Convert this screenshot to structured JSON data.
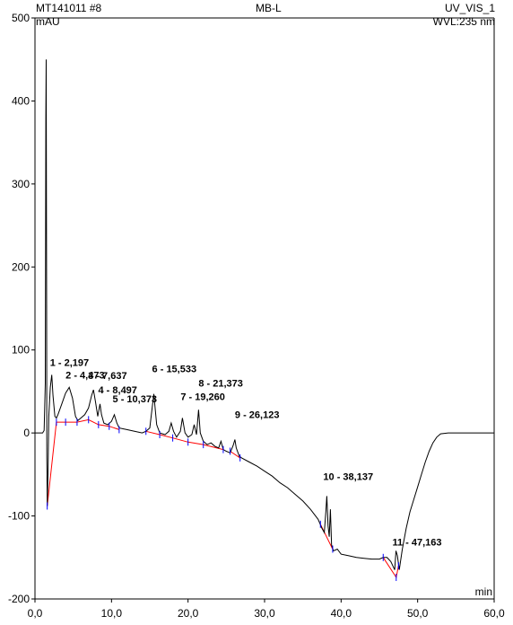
{
  "header": {
    "sample": "MT141011 #8",
    "method": "MB-L",
    "channel": "UV_VIS_1",
    "y_unit": "mAU",
    "wavelength": "WVL:235 nm"
  },
  "colors": {
    "trace": "#000000",
    "baseline": "#ff0000",
    "marker": "#0000ff"
  },
  "chart_data": {
    "type": "line",
    "xlabel": "min",
    "ylabel": "mAU",
    "xlim": [
      0,
      60
    ],
    "ylim": [
      -200,
      500
    ],
    "x_ticks": [
      0,
      10,
      20,
      30,
      40,
      50,
      60
    ],
    "x_tick_labels": [
      "0,0",
      "10,0",
      "20,0",
      "30,0",
      "40,0",
      "50,0",
      "60,0"
    ],
    "y_ticks": [
      -200,
      -100,
      0,
      100,
      200,
      300,
      400,
      500
    ],
    "y_tick_labels": [
      "-200",
      "-100",
      "0",
      "100",
      "200",
      "300",
      "400",
      "500"
    ],
    "grid": false,
    "series": [
      {
        "points": [
          [
            0.0,
            0
          ],
          [
            1.0,
            0
          ],
          [
            1.2,
            3
          ],
          [
            1.35,
            60
          ],
          [
            1.42,
            380
          ],
          [
            1.47,
            450
          ],
          [
            1.52,
            150
          ],
          [
            1.55,
            -30
          ],
          [
            1.6,
            -88
          ],
          [
            1.7,
            -50
          ],
          [
            1.8,
            20
          ],
          [
            2.0,
            55
          ],
          [
            2.197,
            70
          ],
          [
            2.35,
            45
          ],
          [
            2.6,
            20
          ],
          [
            2.8,
            18
          ],
          [
            3.0,
            22
          ],
          [
            3.5,
            35
          ],
          [
            4.0,
            48
          ],
          [
            4.473,
            55
          ],
          [
            4.9,
            42
          ],
          [
            5.3,
            20
          ],
          [
            5.6,
            15
          ],
          [
            6.0,
            18
          ],
          [
            6.5,
            22
          ],
          [
            7.0,
            30
          ],
          [
            7.4,
            45
          ],
          [
            7.637,
            52
          ],
          [
            7.9,
            38
          ],
          [
            8.2,
            20
          ],
          [
            8.497,
            35
          ],
          [
            8.7,
            22
          ],
          [
            9.0,
            12
          ],
          [
            9.5,
            10
          ],
          [
            10.0,
            14
          ],
          [
            10.373,
            22
          ],
          [
            10.7,
            12
          ],
          [
            11.0,
            6
          ],
          [
            11.5,
            5
          ],
          [
            12.0,
            4
          ],
          [
            13.0,
            2
          ],
          [
            14.0,
            0
          ],
          [
            14.5,
            2
          ],
          [
            15.0,
            6
          ],
          [
            15.533,
            47
          ],
          [
            15.9,
            10
          ],
          [
            16.3,
            0
          ],
          [
            17.0,
            -2
          ],
          [
            17.5,
            2
          ],
          [
            17.8,
            12
          ],
          [
            18.1,
            2
          ],
          [
            18.5,
            -5
          ],
          [
            19.0,
            2
          ],
          [
            19.26,
            18
          ],
          [
            19.6,
            0
          ],
          [
            20.0,
            -5
          ],
          [
            20.5,
            -2
          ],
          [
            20.8,
            10
          ],
          [
            21.1,
            -2
          ],
          [
            21.373,
            28
          ],
          [
            21.6,
            0
          ],
          [
            22.0,
            -10
          ],
          [
            22.5,
            -14
          ],
          [
            23.0,
            -12
          ],
          [
            23.5,
            -16
          ],
          [
            24.0,
            -18
          ],
          [
            24.3,
            -10
          ],
          [
            24.6,
            -20
          ],
          [
            25.0,
            -22
          ],
          [
            25.5,
            -24
          ],
          [
            25.9,
            -15
          ],
          [
            26.123,
            -8
          ],
          [
            26.3,
            -18
          ],
          [
            26.7,
            -28
          ],
          [
            27.0,
            -30
          ],
          [
            28.0,
            -35
          ],
          [
            29.0,
            -40
          ],
          [
            30.0,
            -46
          ],
          [
            31.0,
            -52
          ],
          [
            32.0,
            -60
          ],
          [
            33.0,
            -66
          ],
          [
            34.0,
            -74
          ],
          [
            35.0,
            -82
          ],
          [
            36.0,
            -92
          ],
          [
            37.0,
            -104
          ],
          [
            37.5,
            -115
          ],
          [
            37.8,
            -120
          ],
          [
            38.0,
            -95
          ],
          [
            38.137,
            -76
          ],
          [
            38.3,
            -112
          ],
          [
            38.45,
            -125
          ],
          [
            38.6,
            -92
          ],
          [
            38.75,
            -135
          ],
          [
            39.0,
            -142
          ],
          [
            39.5,
            -140
          ],
          [
            40.0,
            -146
          ],
          [
            41.0,
            -148
          ],
          [
            42.0,
            -150
          ],
          [
            43.0,
            -151
          ],
          [
            44.0,
            -152
          ],
          [
            45.0,
            -152
          ],
          [
            45.5,
            -150
          ],
          [
            46.0,
            -150
          ],
          [
            46.5,
            -155
          ],
          [
            47.0,
            -165
          ],
          [
            47.163,
            -142
          ],
          [
            47.35,
            -148
          ],
          [
            47.6,
            -165
          ],
          [
            48.0,
            -140
          ],
          [
            48.5,
            -115
          ],
          [
            49.0,
            -95
          ],
          [
            49.5,
            -80
          ],
          [
            50.0,
            -65
          ],
          [
            50.5,
            -50
          ],
          [
            51.0,
            -35
          ],
          [
            51.5,
            -22
          ],
          [
            52.0,
            -12
          ],
          [
            52.5,
            -5
          ],
          [
            53.0,
            -1
          ],
          [
            54.0,
            0
          ],
          [
            56.0,
            0
          ],
          [
            58.0,
            0
          ],
          [
            60.0,
            0
          ]
        ]
      }
    ],
    "baseline_segments": [
      [
        [
          1.6,
          -88
        ],
        [
          2.8,
          13
        ],
        [
          4.0,
          13
        ],
        [
          5.5,
          13
        ],
        [
          7.0,
          16
        ],
        [
          8.3,
          10
        ],
        [
          9.7,
          8
        ],
        [
          11.0,
          4
        ]
      ],
      [
        [
          14.5,
          2
        ],
        [
          16.3,
          -2
        ],
        [
          18.0,
          -6
        ],
        [
          20.0,
          -11
        ],
        [
          22.0,
          -14
        ],
        [
          24.6,
          -20
        ]
      ],
      [
        [
          25.5,
          -22
        ],
        [
          26.8,
          -30
        ]
      ],
      [
        [
          37.3,
          -110
        ],
        [
          38.9,
          -140
        ]
      ],
      [
        [
          45.5,
          -150
        ],
        [
          47.2,
          -174
        ],
        [
          47.5,
          -160
        ]
      ]
    ],
    "peaks": [
      {
        "number": 1,
        "rt": 2.197,
        "label": "1 - 2,197"
      },
      {
        "number": 2,
        "rt": 4.473,
        "label": "2 - 4,473"
      },
      {
        "number": 3,
        "rt": 7.637,
        "label": "3 - 7,637"
      },
      {
        "number": 4,
        "rt": 8.497,
        "label": "4 - 8,497"
      },
      {
        "number": 5,
        "rt": 10.373,
        "label": "5 - 10,373"
      },
      {
        "number": 6,
        "rt": 15.533,
        "label": "6 - 15,533"
      },
      {
        "number": 7,
        "rt": 19.26,
        "label": "7 - 19,260"
      },
      {
        "number": 8,
        "rt": 21.373,
        "label": "8 - 21,373"
      },
      {
        "number": 9,
        "rt": 26.123,
        "label": "9 - 26,123"
      },
      {
        "number": 10,
        "rt": 38.137,
        "label": "10 - 38,137"
      },
      {
        "number": 11,
        "rt": 47.163,
        "label": "11 - 47,163"
      }
    ]
  }
}
